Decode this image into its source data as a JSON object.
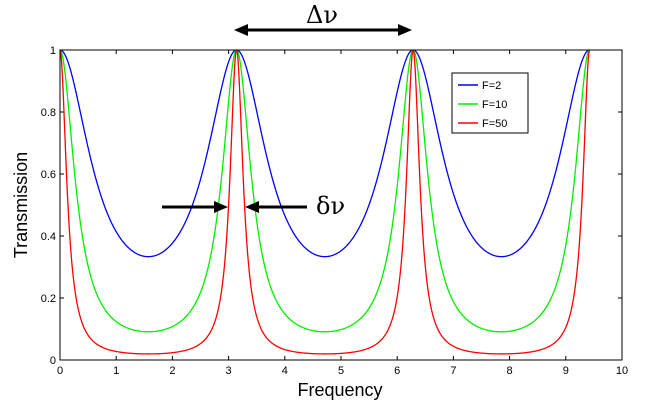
{
  "chart_data": {
    "type": "line",
    "title": "",
    "xlabel": "Frequency",
    "ylabel": "Transmission",
    "xlim": [
      0,
      10
    ],
    "ylim": [
      0,
      1
    ],
    "xticks": [
      "0",
      "1",
      "2",
      "3",
      "4",
      "5",
      "6",
      "7",
      "8",
      "9",
      "10"
    ],
    "yticks": [
      "0",
      "0.2",
      "0.4",
      "0.6",
      "0.8",
      "1"
    ],
    "x_domain": [
      0,
      9.42
    ],
    "legend_position": "top-right",
    "series": [
      {
        "name": "F=2",
        "color": "#0000ff",
        "finesse_coefficient": 2,
        "min_transmission": 0.333
      },
      {
        "name": "F=10",
        "color": "#00ee00",
        "finesse_coefficient": 10,
        "min_transmission": 0.091
      },
      {
        "name": "F=50",
        "color": "#ff0000",
        "finesse_coefficient": 50,
        "min_transmission": 0.02
      }
    ],
    "peaks_at": [
      0,
      3.14,
      6.28,
      9.42
    ],
    "annotations": {
      "fsr_label": "Δν",
      "linewidth_label": "δν"
    }
  }
}
